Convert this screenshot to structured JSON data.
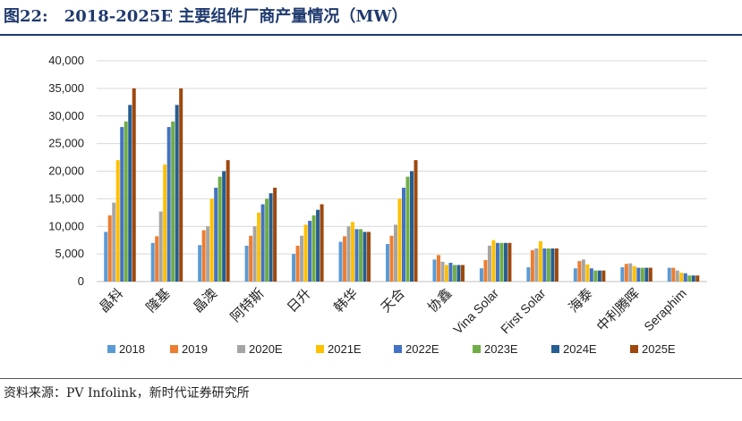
{
  "figure": {
    "number_label": "图22:",
    "title": "2018-2025E 主要组件厂商产量情况（MW）",
    "source": "资料来源：PV Infolink，新时代证券研究所"
  },
  "colors": {
    "title": "#1f3a6e",
    "grid": "#d9d9d9",
    "axis_text": "#222222"
  },
  "chart_data": {
    "type": "bar",
    "title": "2018-2025E 主要组件厂商产量情况（MW）",
    "xlabel": "",
    "ylabel": "",
    "ylim": [
      0,
      40000
    ],
    "y_ticks": [
      "0",
      "5,000",
      "10,000",
      "15,000",
      "20,000",
      "25,000",
      "30,000",
      "35,000",
      "40,000"
    ],
    "grid": true,
    "legend_position": "bottom",
    "categories": [
      "晶科",
      "隆基",
      "晶澳",
      "阿特斯",
      "日升",
      "韩华",
      "天合",
      "协鑫",
      "Vina Solar",
      "First Solar",
      "海泰",
      "中利腾晖",
      "Seraphim"
    ],
    "series": [
      {
        "name": "2018",
        "color": "#5b9bd5",
        "values": [
          9000,
          7000,
          6600,
          6500,
          5000,
          7200,
          6800,
          4000,
          2400,
          2600,
          2400,
          2600,
          2500
        ]
      },
      {
        "name": "2019",
        "color": "#ed7d31",
        "values": [
          12000,
          8200,
          9300,
          8300,
          6500,
          8200,
          8300,
          4800,
          3900,
          5700,
          3700,
          3200,
          2500
        ]
      },
      {
        "name": "2020E",
        "color": "#a5a5a5",
        "values": [
          14300,
          12700,
          10000,
          10000,
          8300,
          10000,
          10300,
          3600,
          6500,
          6000,
          4000,
          3300,
          2000
        ]
      },
      {
        "name": "2021E",
        "color": "#ffc000",
        "values": [
          22000,
          21200,
          15000,
          12500,
          10300,
          10800,
          15000,
          3000,
          7500,
          7300,
          3100,
          2800,
          1600
        ]
      },
      {
        "name": "2022E",
        "color": "#4472c4",
        "values": [
          28000,
          28000,
          17000,
          14000,
          11000,
          9500,
          17000,
          3400,
          7000,
          6000,
          2400,
          2500,
          1500
        ]
      },
      {
        "name": "2023E",
        "color": "#70ad47",
        "values": [
          29000,
          29000,
          19000,
          15000,
          12000,
          9500,
          19000,
          3000,
          7000,
          6000,
          2000,
          2500,
          1100
        ]
      },
      {
        "name": "2024E",
        "color": "#255e91",
        "values": [
          32000,
          32000,
          20000,
          16000,
          13000,
          9000,
          20000,
          3000,
          7000,
          6000,
          2000,
          2500,
          1100
        ]
      },
      {
        "name": "2025E",
        "color": "#9e480e",
        "values": [
          35000,
          35000,
          22000,
          17000,
          14000,
          9000,
          22000,
          3000,
          7000,
          6000,
          2000,
          2500,
          1100
        ]
      }
    ]
  }
}
